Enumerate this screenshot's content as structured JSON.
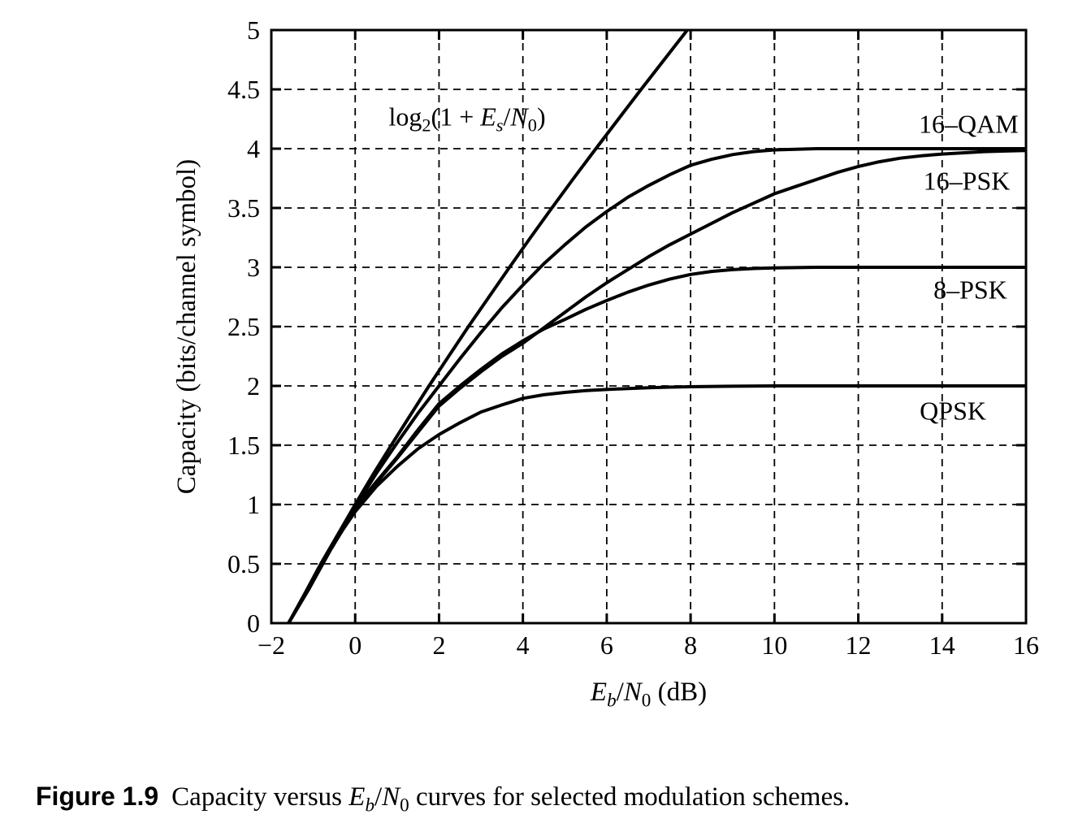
{
  "figure_caption": {
    "label": "Figure 1.9",
    "text": "Capacity versus *E*~b~/*N*_0_ curves for selected modulation schemes."
  },
  "chart_data": {
    "type": "line",
    "title": "",
    "xlabel_rich": "*E*~b~/*N*_0_ (dB)",
    "ylabel": "Capacity (bits/channel symbol)",
    "xlim": [
      -2,
      16
    ],
    "ylim": [
      0,
      5
    ],
    "xticks": {
      "values": [
        -2,
        0,
        2,
        4,
        6,
        8,
        10,
        12,
        14,
        16
      ],
      "labels": [
        "−2",
        "0",
        "2",
        "4",
        "6",
        "8",
        "10",
        "12",
        "14",
        "16"
      ]
    },
    "yticks": {
      "values": [
        0,
        0.5,
        1,
        1.5,
        2,
        2.5,
        3,
        3.5,
        4,
        4.5,
        5
      ],
      "labels": [
        "0",
        "0.5",
        "1",
        "1.5",
        "2",
        "2.5",
        "3",
        "3.5",
        "4",
        "4.5",
        "5"
      ]
    },
    "grid": {
      "on": true,
      "style": "dashed",
      "color": "#000000",
      "x_at": [
        0,
        2,
        4,
        6,
        8,
        10,
        12,
        14
      ],
      "y_at": [
        0.5,
        1,
        1.5,
        2,
        2.5,
        3,
        3.5,
        4,
        4.5
      ]
    },
    "legend_position": "inline-labels",
    "line_color": "#000000",
    "background_color": "#ffffff",
    "series": [
      {
        "name": "shannon-capacity",
        "label_rich": "log_2_(1 + *E*~s~/*N*_0_)",
        "label_pos": {
          "x": 2.67,
          "y": 4.27,
          "anchor": "middle"
        },
        "points": [
          [
            -1.59,
            0
          ],
          [
            -1.2,
            0.25
          ],
          [
            -0.82,
            0.5
          ],
          [
            -0.41,
            0.75
          ],
          [
            0,
            1
          ],
          [
            0.42,
            1.25
          ],
          [
            0.86,
            1.5
          ],
          [
            1.31,
            1.75
          ],
          [
            1.76,
            2
          ],
          [
            2.23,
            2.25
          ],
          [
            2.7,
            2.5
          ],
          [
            3.19,
            2.75
          ],
          [
            3.68,
            3
          ],
          [
            4.18,
            3.25
          ],
          [
            4.69,
            3.5
          ],
          [
            5.21,
            3.75
          ],
          [
            5.74,
            4
          ],
          [
            6.28,
            4.25
          ],
          [
            6.82,
            4.5
          ],
          [
            7.37,
            4.75
          ],
          [
            7.92,
            5
          ]
        ]
      },
      {
        "name": "16-qam",
        "label_rich": "16–QAM",
        "label_pos": {
          "x": 15.82,
          "y": 4.21,
          "anchor": "end"
        },
        "points": [
          [
            -1.59,
            0
          ],
          [
            -1.1,
            0.3
          ],
          [
            -0.6,
            0.62
          ],
          [
            0,
            0.98
          ],
          [
            0.5,
            1.26
          ],
          [
            1,
            1.52
          ],
          [
            1.5,
            1.77
          ],
          [
            2,
            2.0
          ],
          [
            2.5,
            2.23
          ],
          [
            3,
            2.45
          ],
          [
            3.5,
            2.66
          ],
          [
            4,
            2.85
          ],
          [
            4.5,
            3.03
          ],
          [
            5,
            3.19
          ],
          [
            5.5,
            3.34
          ],
          [
            6,
            3.47
          ],
          [
            6.5,
            3.59
          ],
          [
            7,
            3.69
          ],
          [
            7.5,
            3.78
          ],
          [
            8,
            3.86
          ],
          [
            8.5,
            3.91
          ],
          [
            9,
            3.95
          ],
          [
            9.5,
            3.975
          ],
          [
            10,
            3.99
          ],
          [
            10.5,
            3.995
          ],
          [
            11,
            4
          ],
          [
            12,
            4
          ],
          [
            14,
            4
          ],
          [
            16,
            4
          ]
        ]
      },
      {
        "name": "16-psk",
        "label_rich": "16–PSK",
        "label_pos": {
          "x": 15.62,
          "y": 3.73,
          "anchor": "end"
        },
        "points": [
          [
            -1.59,
            0
          ],
          [
            -1.1,
            0.29
          ],
          [
            -0.6,
            0.61
          ],
          [
            0,
            0.96
          ],
          [
            0.5,
            1.18
          ],
          [
            1,
            1.39
          ],
          [
            1.5,
            1.61
          ],
          [
            2,
            1.83
          ],
          [
            2.5,
            1.98
          ],
          [
            3,
            2.12
          ],
          [
            3.5,
            2.25
          ],
          [
            4,
            2.36
          ],
          [
            4.5,
            2.49
          ],
          [
            5,
            2.62
          ],
          [
            5.5,
            2.75
          ],
          [
            6,
            2.87
          ],
          [
            6.5,
            2.98
          ],
          [
            7,
            3.09
          ],
          [
            7.5,
            3.19
          ],
          [
            8,
            3.28
          ],
          [
            8.5,
            3.37
          ],
          [
            9,
            3.46
          ],
          [
            9.5,
            3.54
          ],
          [
            10,
            3.62
          ],
          [
            10.5,
            3.68
          ],
          [
            11,
            3.74
          ],
          [
            11.5,
            3.8
          ],
          [
            12,
            3.85
          ],
          [
            12.5,
            3.89
          ],
          [
            13,
            3.92
          ],
          [
            13.5,
            3.94
          ],
          [
            14,
            3.955
          ],
          [
            14.5,
            3.965
          ],
          [
            15,
            3.975
          ],
          [
            15.5,
            3.98
          ],
          [
            16,
            3.985
          ]
        ]
      },
      {
        "name": "8-psk",
        "label_rich": "8–PSK",
        "label_pos": {
          "x": 15.55,
          "y": 2.81,
          "anchor": "end"
        },
        "points": [
          [
            -1.59,
            0
          ],
          [
            -1.1,
            0.29
          ],
          [
            -0.6,
            0.62
          ],
          [
            0,
            0.97
          ],
          [
            0.5,
            1.19
          ],
          [
            1,
            1.4
          ],
          [
            1.5,
            1.63
          ],
          [
            2,
            1.85
          ],
          [
            2.5,
            2.0
          ],
          [
            3,
            2.14
          ],
          [
            3.5,
            2.27
          ],
          [
            4,
            2.38
          ],
          [
            4.5,
            2.48
          ],
          [
            5,
            2.56
          ],
          [
            5.5,
            2.645
          ],
          [
            6,
            2.72
          ],
          [
            6.5,
            2.79
          ],
          [
            7,
            2.85
          ],
          [
            7.5,
            2.9
          ],
          [
            8,
            2.94
          ],
          [
            8.5,
            2.965
          ],
          [
            9,
            2.98
          ],
          [
            9.5,
            2.99
          ],
          [
            10,
            2.995
          ],
          [
            11,
            3
          ],
          [
            12,
            3
          ],
          [
            14,
            3
          ],
          [
            16,
            3
          ]
        ]
      },
      {
        "name": "qpsk",
        "label_rich": "QPSK",
        "label_pos": {
          "x": 15.05,
          "y": 1.79,
          "anchor": "end"
        },
        "points": [
          [
            -1.59,
            0
          ],
          [
            -1.1,
            0.31
          ],
          [
            -0.6,
            0.63
          ],
          [
            0,
            0.94
          ],
          [
            0.5,
            1.15
          ],
          [
            1,
            1.32
          ],
          [
            1.5,
            1.47
          ],
          [
            2,
            1.59
          ],
          [
            2.5,
            1.69
          ],
          [
            3,
            1.78
          ],
          [
            3.5,
            1.84
          ],
          [
            4,
            1.895
          ],
          [
            4.5,
            1.925
          ],
          [
            5,
            1.945
          ],
          [
            5.5,
            1.96
          ],
          [
            6,
            1.97
          ],
          [
            6.5,
            1.978
          ],
          [
            7,
            1.985
          ],
          [
            7.5,
            1.99
          ],
          [
            8,
            1.993
          ],
          [
            9,
            1.997
          ],
          [
            10,
            2
          ],
          [
            12,
            2
          ],
          [
            14,
            2
          ],
          [
            16,
            2
          ]
        ]
      }
    ]
  }
}
